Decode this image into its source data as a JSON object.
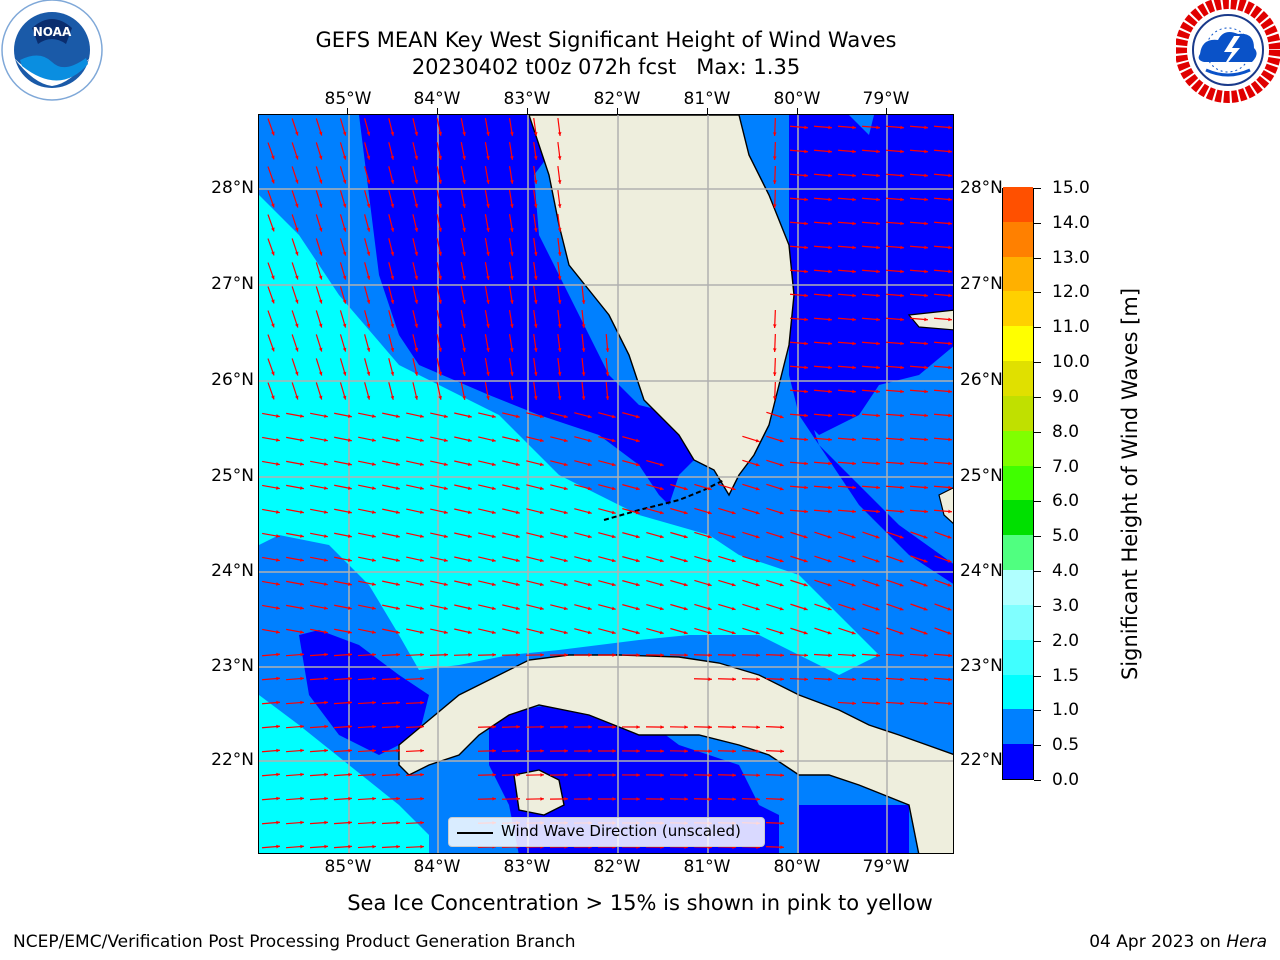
{
  "title": {
    "line1": "GEFS MEAN Key West Significant Height of Wind Waves",
    "run": "20230402 t00z 072h fcst",
    "max": "Max: 1.35"
  },
  "logos": {
    "left": {
      "icon": "noaa-logo",
      "text": "NOAA",
      "ring": "NATIONAL OCEANIC AND ATMOSPHERIC ADMINISTRATION · U.S. DEPARTMENT OF COMMERCE"
    },
    "right": {
      "icon": "nws-logo",
      "ring": "NATIONAL WEATHER SERVICE"
    }
  },
  "map": {
    "lon_labels": [
      "85°W",
      "84°W",
      "83°W",
      "82°W",
      "81°W",
      "80°W",
      "79°W"
    ],
    "lat_labels": [
      "28°N",
      "27°N",
      "26°N",
      "25°N",
      "24°N",
      "23°N",
      "22°N"
    ],
    "legend": "Wind Wave Direction (unscaled)",
    "arrow_color": "#ff0000",
    "land_color": "#eeeedd",
    "gridline_color": "#b0b0b0"
  },
  "colorbar": {
    "label": "Significant Height of Wind Waves [m]",
    "ticks": [
      "0.0",
      "0.5",
      "1.0",
      "1.5",
      "2.0",
      "3.0",
      "4.0",
      "5.0",
      "6.0",
      "7.0",
      "8.0",
      "9.0",
      "10.0",
      "11.0",
      "12.0",
      "13.0",
      "14.0",
      "15.0"
    ],
    "colors": [
      "#0000ff",
      "#0080ff",
      "#00ffff",
      "#40ffff",
      "#80ffff",
      "#b0ffff",
      "#50ff80",
      "#00e000",
      "#40ff00",
      "#80ff00",
      "#c0e000",
      "#e0e000",
      "#ffff00",
      "#ffd000",
      "#ffb000",
      "#ff8000",
      "#ff5000",
      "#ff2000",
      "#ff0000"
    ]
  },
  "caption": "Sea Ice Concentration > 15% is shown in pink to yellow",
  "footer": {
    "left": "NCEP/EMC/Verification Post Processing Product Generation Branch",
    "date": "04 Apr 2023 on",
    "host": "Hera"
  }
}
